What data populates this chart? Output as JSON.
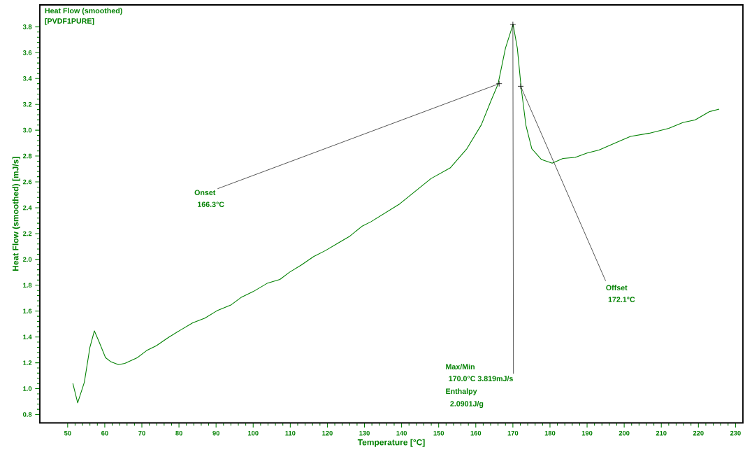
{
  "chart_data": {
    "type": "line",
    "title": "Heat Flow (smoothed)",
    "subtitle": "[PVDF1PURE]",
    "xlabel": "Temperature [°C]",
    "ylabel": "Heat Flow (smoothed) [mJ/s]",
    "xlim": [
      42.5,
      232
    ],
    "ylim": [
      0.735,
      3.97
    ],
    "xticks": [
      50,
      60,
      70,
      80,
      90,
      100,
      110,
      120,
      130,
      140,
      150,
      160,
      170,
      180,
      190,
      200,
      210,
      220,
      230
    ],
    "yticks": [
      0.8,
      {
        "value": 1.0,
        "label": "1.0"
      },
      1.2,
      1.4,
      1.6,
      1.8,
      {
        "value": 2.0,
        "label": "2.0"
      },
      2.2,
      2.4,
      2.6,
      2.8,
      {
        "value": 3.0,
        "label": "3.0"
      },
      3.2,
      3.4,
      3.6,
      3.8
    ],
    "grid": false,
    "marker": "none",
    "line_style": "solid",
    "series": [
      {
        "color": "#008000",
        "x": [
          51.4,
          52.7,
          54.5,
          56.0,
          57.2,
          58.5,
          60.2,
          61.7,
          63.7,
          65.4,
          68.7,
          71.3,
          73.9,
          77.2,
          80.4,
          83.7,
          87.0,
          90.2,
          94.1,
          96.7,
          100.0,
          103.9,
          107.2,
          109.8,
          113.0,
          116.3,
          119.5,
          122.8,
          126.1,
          129.3,
          131.7,
          139.5,
          147.9,
          153.1,
          157.6,
          161.5,
          164.1,
          166.0,
          168.0,
          170.05,
          171.2,
          172.2,
          173.5,
          175.1,
          177.7,
          180.6,
          183.5,
          186.8,
          190.0,
          193.2,
          198.4,
          201.7,
          206.8,
          212.0,
          215.9,
          219.1,
          223.0,
          225.6
        ],
        "values": [
          1.04,
          0.89,
          1.05,
          1.32,
          1.447,
          1.36,
          1.24,
          1.207,
          1.186,
          1.195,
          1.238,
          1.295,
          1.332,
          1.397,
          1.453,
          1.509,
          1.546,
          1.602,
          1.649,
          1.705,
          1.751,
          1.817,
          1.845,
          1.901,
          1.957,
          2.022,
          2.069,
          2.125,
          2.181,
          2.256,
          2.291,
          2.43,
          2.625,
          2.708,
          2.857,
          3.042,
          3.228,
          3.357,
          3.635,
          3.82,
          3.635,
          3.338,
          3.04,
          2.857,
          2.773,
          2.745,
          2.782,
          2.79,
          2.823,
          2.847,
          2.912,
          2.952,
          2.977,
          3.014,
          3.06,
          3.079,
          3.144,
          3.163
        ]
      }
    ],
    "annotations": [
      {
        "text": "Onset",
        "x": 166.3,
        "y": 3.36
      },
      "166.3°C",
      "Max/Min",
      {
        "text": "170.0°C   3.819mJ/s",
        "x": 170.0,
        "y": 3.819
      },
      "Enthalpy",
      "2.0901J/g",
      {
        "text": "Offset",
        "x": 172.1,
        "y": 3.34
      },
      "172.1°C"
    ]
  }
}
